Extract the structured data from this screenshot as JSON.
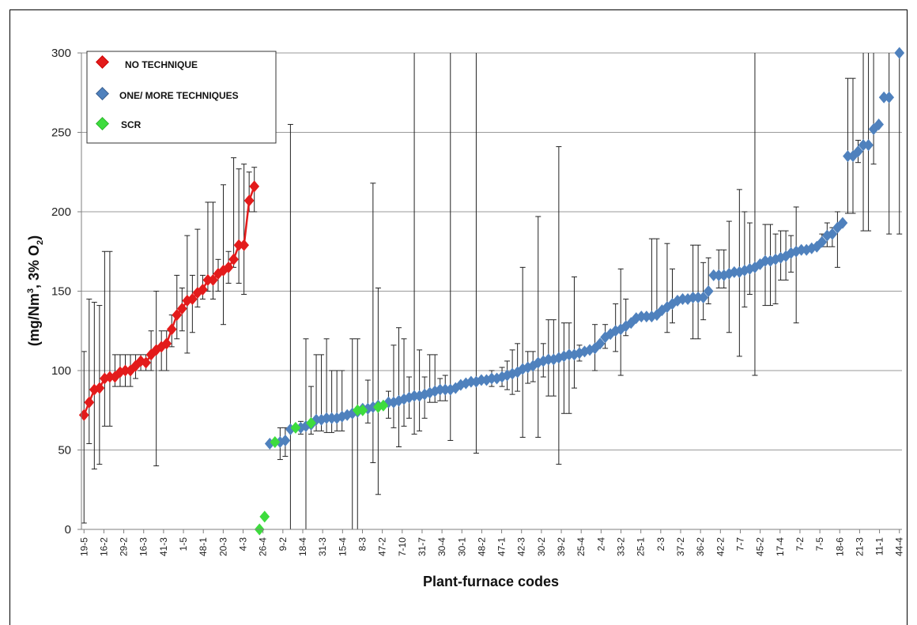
{
  "chart_data": {
    "type": "scatter",
    "xlabel": "Plant-furnace  codes",
    "ylabel_main": "(mg/Nm",
    "ylabel_sup": "3",
    "ylabel_mid": ", 3% O",
    "ylabel_sub": "2",
    "ylabel_end": ")",
    "ylim": [
      0,
      300
    ],
    "yticks": [
      0,
      50,
      100,
      150,
      200,
      250,
      300
    ],
    "grid": "horizontal",
    "legend_placement": "top-left",
    "x_tick_labels": [
      "19-5",
      "16-2",
      "29-2",
      "16-3",
      "41-3",
      "1-5",
      "48-1",
      "20-3",
      "4-3",
      "26-4",
      "9-2",
      "18-4",
      "31-3",
      "15-4",
      "8-3",
      "47-2",
      "7-10",
      "31-7",
      "30-4",
      "30-1",
      "48-2",
      "47-1",
      "42-3",
      "30-2",
      "39-2",
      "25-4",
      "2-4",
      "33-2",
      "25-1",
      "2-3",
      "37-2",
      "36-2",
      "42-2",
      "7-7",
      "45-2",
      "17-4",
      "7-2",
      "7-5",
      "18-6",
      "21-3",
      "11-1",
      "44-4"
    ],
    "series": [
      {
        "name": "NO TECHNIQUE",
        "color": "#e31b1b",
        "connected": true,
        "points": [
          {
            "x": 1,
            "y": 72,
            "lo": 4,
            "hi": 112
          },
          {
            "x": 2,
            "y": 80,
            "lo": 54,
            "hi": 145
          },
          {
            "x": 3,
            "y": 88,
            "lo": 38,
            "hi": 143
          },
          {
            "x": 4,
            "y": 89,
            "lo": 41,
            "hi": 141
          },
          {
            "x": 5,
            "y": 95,
            "lo": 65,
            "hi": 175
          },
          {
            "x": 6,
            "y": 96,
            "lo": 65,
            "hi": 175
          },
          {
            "x": 7,
            "y": 96,
            "lo": 90,
            "hi": 110
          },
          {
            "x": 8,
            "y": 99,
            "lo": 90,
            "hi": 110
          },
          {
            "x": 9,
            "y": 100,
            "lo": 90,
            "hi": 110
          },
          {
            "x": 10,
            "y": 100,
            "lo": 90,
            "hi": 110
          },
          {
            "x": 11,
            "y": 103,
            "lo": 95,
            "hi": 110
          },
          {
            "x": 12,
            "y": 106,
            "lo": 100,
            "hi": 110
          },
          {
            "x": 13,
            "y": 105,
            "lo": 100,
            "hi": 110
          },
          {
            "x": 14,
            "y": 110,
            "lo": 100,
            "hi": 125
          },
          {
            "x": 15,
            "y": 113,
            "lo": 40,
            "hi": 150
          },
          {
            "x": 16,
            "y": 115,
            "lo": 100,
            "hi": 125
          },
          {
            "x": 17,
            "y": 117,
            "lo": 100,
            "hi": 125
          },
          {
            "x": 18,
            "y": 126,
            "lo": 115,
            "hi": 135
          },
          {
            "x": 19,
            "y": 135,
            "lo": 120,
            "hi": 160
          },
          {
            "x": 20,
            "y": 139,
            "lo": 125,
            "hi": 152
          },
          {
            "x": 21,
            "y": 144,
            "lo": 111,
            "hi": 185
          },
          {
            "x": 22,
            "y": 145,
            "lo": 124,
            "hi": 160
          },
          {
            "x": 23,
            "y": 149,
            "lo": 140,
            "hi": 189
          },
          {
            "x": 24,
            "y": 151,
            "lo": 145,
            "hi": 160
          },
          {
            "x": 25,
            "y": 157,
            "lo": 150,
            "hi": 206
          },
          {
            "x": 26,
            "y": 157,
            "lo": 145,
            "hi": 206
          },
          {
            "x": 27,
            "y": 161,
            "lo": 150,
            "hi": 170
          },
          {
            "x": 28,
            "y": 163,
            "lo": 129,
            "hi": 217
          },
          {
            "x": 29,
            "y": 165,
            "lo": 155,
            "hi": 175
          },
          {
            "x": 30,
            "y": 170,
            "lo": 165,
            "hi": 234
          },
          {
            "x": 31,
            "y": 179,
            "lo": 155,
            "hi": 227
          },
          {
            "x": 32,
            "y": 179,
            "lo": 148,
            "hi": 230
          },
          {
            "x": 33,
            "y": 207,
            "lo": 200,
            "hi": 225
          },
          {
            "x": 34,
            "y": 216,
            "lo": 200,
            "hi": 228
          }
        ]
      },
      {
        "name": "ONE/ MORE  TECHNIQUES",
        "color": "#4f81bd",
        "connected": false,
        "points": [
          {
            "x": 37,
            "y": 54
          },
          {
            "x": 39,
            "y": 55,
            "lo": 44,
            "hi": 64
          },
          {
            "x": 40,
            "y": 56,
            "lo": 46,
            "hi": 64
          },
          {
            "x": 41,
            "y": 63,
            "lo": 0,
            "hi": 255
          },
          {
            "x": 43,
            "y": 64,
            "lo": 60,
            "hi": 68
          },
          {
            "x": 44,
            "y": 65,
            "lo": 0,
            "hi": 120
          },
          {
            "x": 45,
            "y": 66,
            "lo": 60,
            "hi": 90
          },
          {
            "x": 46,
            "y": 69,
            "lo": 62,
            "hi": 110
          },
          {
            "x": 47,
            "y": 69,
            "lo": 62,
            "hi": 110
          },
          {
            "x": 48,
            "y": 70,
            "lo": 61,
            "hi": 120
          },
          {
            "x": 49,
            "y": 70,
            "lo": 61,
            "hi": 100
          },
          {
            "x": 50,
            "y": 70,
            "lo": 62,
            "hi": 100
          },
          {
            "x": 51,
            "y": 71,
            "lo": 62,
            "hi": 100
          },
          {
            "x": 52,
            "y": 72
          },
          {
            "x": 53,
            "y": 73,
            "lo": 0,
            "hi": 120
          },
          {
            "x": 54,
            "y": 74,
            "lo": 0,
            "hi": 120
          },
          {
            "x": 55,
            "y": 76
          },
          {
            "x": 56,
            "y": 76,
            "lo": 67,
            "hi": 94
          },
          {
            "x": 57,
            "y": 77,
            "lo": 42,
            "hi": 218
          },
          {
            "x": 58,
            "y": 78,
            "lo": 22,
            "hi": 152
          },
          {
            "x": 60,
            "y": 80,
            "lo": 70,
            "hi": 87
          },
          {
            "x": 61,
            "y": 80,
            "lo": 64,
            "hi": 116
          },
          {
            "x": 62,
            "y": 81,
            "lo": 52,
            "hi": 127
          },
          {
            "x": 63,
            "y": 82,
            "lo": 65,
            "hi": 120
          },
          {
            "x": 64,
            "y": 83,
            "lo": 70,
            "hi": 96
          },
          {
            "x": 65,
            "y": 84,
            "lo": 60,
            "hi": 300
          },
          {
            "x": 66,
            "y": 84,
            "lo": 62,
            "hi": 113
          },
          {
            "x": 67,
            "y": 85,
            "lo": 70,
            "hi": 96
          },
          {
            "x": 68,
            "y": 86,
            "lo": 80,
            "hi": 110
          },
          {
            "x": 69,
            "y": 87,
            "lo": 80,
            "hi": 110
          },
          {
            "x": 70,
            "y": 88,
            "lo": 81,
            "hi": 95
          },
          {
            "x": 71,
            "y": 88,
            "lo": 81,
            "hi": 97
          },
          {
            "x": 72,
            "y": 88,
            "lo": 56,
            "hi": 300
          },
          {
            "x": 73,
            "y": 89
          },
          {
            "x": 74,
            "y": 91
          },
          {
            "x": 75,
            "y": 92
          },
          {
            "x": 76,
            "y": 93
          },
          {
            "x": 77,
            "y": 93,
            "lo": 48,
            "hi": 300
          },
          {
            "x": 78,
            "y": 94
          },
          {
            "x": 79,
            "y": 94
          },
          {
            "x": 80,
            "y": 95,
            "lo": 90,
            "hi": 100
          },
          {
            "x": 81,
            "y": 95
          },
          {
            "x": 82,
            "y": 96,
            "lo": 90,
            "hi": 102
          },
          {
            "x": 83,
            "y": 97,
            "lo": 88,
            "hi": 106
          },
          {
            "x": 84,
            "y": 98,
            "lo": 85,
            "hi": 113
          },
          {
            "x": 85,
            "y": 99,
            "lo": 87,
            "hi": 117
          },
          {
            "x": 86,
            "y": 101,
            "lo": 58,
            "hi": 165
          },
          {
            "x": 87,
            "y": 102,
            "lo": 92,
            "hi": 112
          },
          {
            "x": 88,
            "y": 103,
            "lo": 93,
            "hi": 112
          },
          {
            "x": 89,
            "y": 105,
            "lo": 58,
            "hi": 197
          },
          {
            "x": 90,
            "y": 106,
            "lo": 96,
            "hi": 117
          },
          {
            "x": 91,
            "y": 107,
            "lo": 84,
            "hi": 132
          },
          {
            "x": 92,
            "y": 107,
            "lo": 84,
            "hi": 132
          },
          {
            "x": 93,
            "y": 108,
            "lo": 41,
            "hi": 241
          },
          {
            "x": 94,
            "y": 109,
            "lo": 73,
            "hi": 130
          },
          {
            "x": 95,
            "y": 110,
            "lo": 73,
            "hi": 130
          },
          {
            "x": 96,
            "y": 110,
            "lo": 89,
            "hi": 159
          },
          {
            "x": 97,
            "y": 111,
            "lo": 106,
            "hi": 116
          },
          {
            "x": 98,
            "y": 112
          },
          {
            "x": 99,
            "y": 113
          },
          {
            "x": 100,
            "y": 114,
            "lo": 100,
            "hi": 129
          },
          {
            "x": 101,
            "y": 117
          },
          {
            "x": 102,
            "y": 121,
            "lo": 114,
            "hi": 129
          },
          {
            "x": 103,
            "y": 123
          },
          {
            "x": 104,
            "y": 125,
            "lo": 112,
            "hi": 142
          },
          {
            "x": 105,
            "y": 126,
            "lo": 97,
            "hi": 164
          },
          {
            "x": 106,
            "y": 128,
            "lo": 122,
            "hi": 145
          },
          {
            "x": 107,
            "y": 130
          },
          {
            "x": 108,
            "y": 133
          },
          {
            "x": 109,
            "y": 134
          },
          {
            "x": 110,
            "y": 134
          },
          {
            "x": 111,
            "y": 134,
            "lo": 134,
            "hi": 183
          },
          {
            "x": 112,
            "y": 135,
            "lo": 134,
            "hi": 183
          },
          {
            "x": 113,
            "y": 138
          },
          {
            "x": 114,
            "y": 140,
            "lo": 124,
            "hi": 180
          },
          {
            "x": 115,
            "y": 142,
            "lo": 130,
            "hi": 164
          },
          {
            "x": 116,
            "y": 144
          },
          {
            "x": 117,
            "y": 145
          },
          {
            "x": 118,
            "y": 145
          },
          {
            "x": 119,
            "y": 146,
            "lo": 120,
            "hi": 179
          },
          {
            "x": 120,
            "y": 146,
            "lo": 120,
            "hi": 179
          },
          {
            "x": 121,
            "y": 146,
            "lo": 132,
            "hi": 168
          },
          {
            "x": 122,
            "y": 150,
            "lo": 142,
            "hi": 171
          },
          {
            "x": 123,
            "y": 160
          },
          {
            "x": 124,
            "y": 160,
            "lo": 152,
            "hi": 176
          },
          {
            "x": 125,
            "y": 160,
            "lo": 152,
            "hi": 176
          },
          {
            "x": 126,
            "y": 161,
            "lo": 124,
            "hi": 194
          },
          {
            "x": 127,
            "y": 162
          },
          {
            "x": 128,
            "y": 162,
            "lo": 109,
            "hi": 214
          },
          {
            "x": 129,
            "y": 163,
            "lo": 140,
            "hi": 200
          },
          {
            "x": 130,
            "y": 164,
            "lo": 148,
            "hi": 193
          },
          {
            "x": 131,
            "y": 165,
            "lo": 97,
            "hi": 300
          },
          {
            "x": 132,
            "y": 167
          },
          {
            "x": 133,
            "y": 169,
            "lo": 141,
            "hi": 192
          },
          {
            "x": 134,
            "y": 169,
            "lo": 141,
            "hi": 192
          },
          {
            "x": 135,
            "y": 170,
            "lo": 142,
            "hi": 186
          },
          {
            "x": 136,
            "y": 171,
            "lo": 157,
            "hi": 188
          },
          {
            "x": 137,
            "y": 172,
            "lo": 157,
            "hi": 188
          },
          {
            "x": 138,
            "y": 174,
            "lo": 162,
            "hi": 185
          },
          {
            "x": 139,
            "y": 175,
            "lo": 130,
            "hi": 203
          },
          {
            "x": 140,
            "y": 176
          },
          {
            "x": 141,
            "y": 176
          },
          {
            "x": 142,
            "y": 177
          },
          {
            "x": 143,
            "y": 178
          },
          {
            "x": 144,
            "y": 181,
            "lo": 178,
            "hi": 186
          },
          {
            "x": 145,
            "y": 185,
            "lo": 178,
            "hi": 193
          },
          {
            "x": 146,
            "y": 186,
            "lo": 178,
            "hi": 190
          },
          {
            "x": 147,
            "y": 190,
            "lo": 165,
            "hi": 200
          },
          {
            "x": 148,
            "y": 193
          },
          {
            "x": 149,
            "y": 235,
            "lo": 199,
            "hi": 284
          },
          {
            "x": 150,
            "y": 235,
            "lo": 199,
            "hi": 284
          },
          {
            "x": 151,
            "y": 238,
            "lo": 231,
            "hi": 245
          },
          {
            "x": 152,
            "y": 242,
            "lo": 188,
            "hi": 300
          },
          {
            "x": 153,
            "y": 242,
            "lo": 188,
            "hi": 300
          },
          {
            "x": 154,
            "y": 252,
            "lo": 230,
            "hi": 300
          },
          {
            "x": 155,
            "y": 255
          },
          {
            "x": 156,
            "y": 272
          },
          {
            "x": 157,
            "y": 272,
            "lo": 186,
            "hi": 300
          },
          {
            "x": 159,
            "y": 300,
            "lo": 186,
            "hi": 300
          }
        ]
      },
      {
        "name": "SCR",
        "color": "#3ddc3d",
        "connected": false,
        "points": [
          {
            "x": 35,
            "y": 0
          },
          {
            "x": 36,
            "y": 8
          },
          {
            "x": 38,
            "y": 55
          },
          {
            "x": 42,
            "y": 64
          },
          {
            "x": 45,
            "y": 67
          },
          {
            "x": 54,
            "y": 75
          },
          {
            "x": 55,
            "y": 75
          },
          {
            "x": 58,
            "y": 77
          },
          {
            "x": 59,
            "y": 78
          }
        ]
      }
    ]
  }
}
